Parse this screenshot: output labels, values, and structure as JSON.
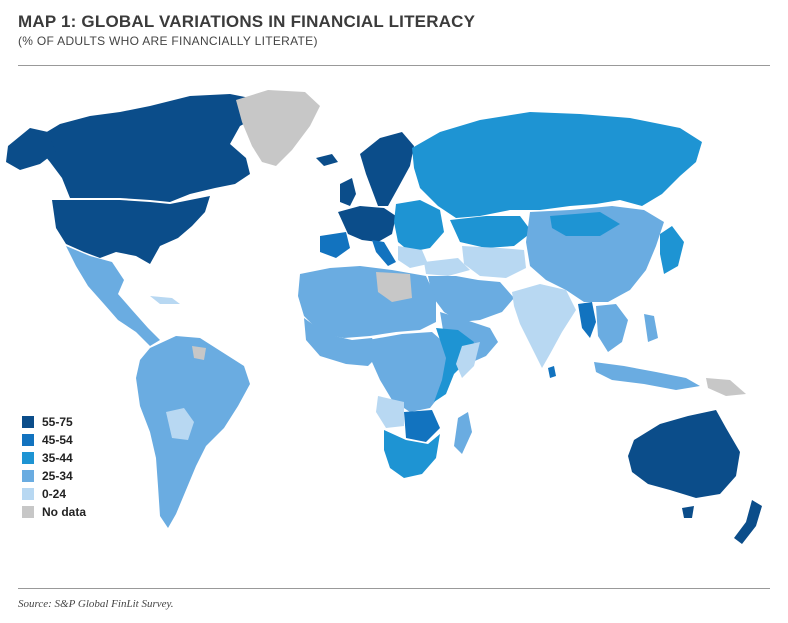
{
  "title": "MAP 1: GLOBAL VARIATIONS IN FINANCIAL LITERACY",
  "subtitle": "(% OF ADULTS WHO ARE FINANCIALLY LITERATE)",
  "legend": {
    "items": [
      {
        "label": "55-75",
        "color": "#0b4d8a"
      },
      {
        "label": "45-54",
        "color": "#1273bf"
      },
      {
        "label": "35-44",
        "color": "#1e94d3"
      },
      {
        "label": "25-34",
        "color": "#6aace1"
      },
      {
        "label": "0-24",
        "color": "#b8d8f2"
      },
      {
        "label": "No data",
        "color": "#c7c7c7"
      }
    ]
  },
  "source": "Source: S&P Global FinLit Survey.",
  "map": {
    "regions": [
      {
        "name": "canada",
        "band": "55-75"
      },
      {
        "name": "united-states",
        "band": "55-75"
      },
      {
        "name": "greenland",
        "band": "No data"
      },
      {
        "name": "mexico-central-america",
        "band": "25-34"
      },
      {
        "name": "south-america",
        "band": "25-34"
      },
      {
        "name": "bolivia-paraguay",
        "band": "0-24"
      },
      {
        "name": "western-europe",
        "band": "55-75"
      },
      {
        "name": "scandinavia",
        "band": "55-75"
      },
      {
        "name": "eastern-europe",
        "band": "35-44"
      },
      {
        "name": "russia",
        "band": "35-44"
      },
      {
        "name": "north-africa",
        "band": "25-34"
      },
      {
        "name": "libya",
        "band": "No data"
      },
      {
        "name": "central-africa",
        "band": "25-34"
      },
      {
        "name": "east-africa",
        "band": "35-44"
      },
      {
        "name": "southern-africa",
        "band": "35-44"
      },
      {
        "name": "botswana-zimbabwe",
        "band": "45-54"
      },
      {
        "name": "madagascar",
        "band": "25-34"
      },
      {
        "name": "middle-east",
        "band": "25-34"
      },
      {
        "name": "arabian-peninsula",
        "band": "25-34"
      },
      {
        "name": "central-asia",
        "band": "0-24"
      },
      {
        "name": "india",
        "band": "0-24"
      },
      {
        "name": "china-mongolia",
        "band": "25-34"
      },
      {
        "name": "myanmar",
        "band": "45-54"
      },
      {
        "name": "southeast-asia",
        "band": "25-34"
      },
      {
        "name": "japan",
        "band": "35-44"
      },
      {
        "name": "indonesia",
        "band": "25-34"
      },
      {
        "name": "papua-new-guinea",
        "band": "No data"
      },
      {
        "name": "australia",
        "band": "55-75"
      },
      {
        "name": "new-zealand",
        "band": "55-75"
      }
    ]
  }
}
